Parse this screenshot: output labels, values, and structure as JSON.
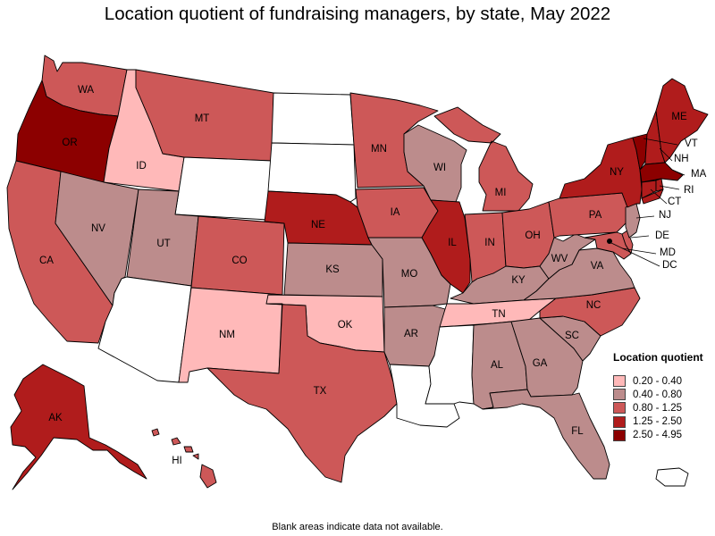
{
  "title": "Location quotient of fundraising managers, by state, May 2022",
  "footnote": "Blank areas indicate data not available.",
  "legend": {
    "title": "Location quotient",
    "bins": [
      {
        "label": "0.20 - 0.40",
        "color": "#ffb9b9"
      },
      {
        "label": "0.40 - 0.80",
        "color": "#bc8c8c"
      },
      {
        "label": "0.80 - 1.25",
        "color": "#cd5858"
      },
      {
        "label": "1.25 - 2.50",
        "color": "#b01c1c"
      },
      {
        "label": "2.50 - 4.95",
        "color": "#8c0000"
      }
    ]
  },
  "no_data_color": "#ffffff",
  "states": {
    "WA": {
      "label": "WA",
      "bin": 2
    },
    "OR": {
      "label": "OR",
      "bin": 4
    },
    "CA": {
      "label": "CA",
      "bin": 2
    },
    "ID": {
      "label": "ID",
      "bin": 0
    },
    "NV": {
      "label": "NV",
      "bin": 1
    },
    "MT": {
      "label": "MT",
      "bin": 2
    },
    "WY": {
      "label": "",
      "bin": null
    },
    "UT": {
      "label": "UT",
      "bin": 1
    },
    "AZ": {
      "label": "",
      "bin": null
    },
    "CO": {
      "label": "CO",
      "bin": 2
    },
    "NM": {
      "label": "NM",
      "bin": 0
    },
    "ND": {
      "label": "",
      "bin": null
    },
    "SD": {
      "label": "",
      "bin": null
    },
    "NE": {
      "label": "NE",
      "bin": 3
    },
    "KS": {
      "label": "KS",
      "bin": 1
    },
    "OK": {
      "label": "OK",
      "bin": 0
    },
    "TX": {
      "label": "TX",
      "bin": 2
    },
    "MN": {
      "label": "MN",
      "bin": 2
    },
    "IA": {
      "label": "IA",
      "bin": 2
    },
    "MO": {
      "label": "MO",
      "bin": 1
    },
    "AR": {
      "label": "AR",
      "bin": 1
    },
    "LA": {
      "label": "",
      "bin": null
    },
    "WI": {
      "label": "WI",
      "bin": 1
    },
    "IL": {
      "label": "IL",
      "bin": 3
    },
    "MI": {
      "label": "MI",
      "bin": 2
    },
    "IN": {
      "label": "IN",
      "bin": 2
    },
    "OH": {
      "label": "OH",
      "bin": 2
    },
    "KY": {
      "label": "KY",
      "bin": 1
    },
    "TN": {
      "label": "TN",
      "bin": 0
    },
    "MS": {
      "label": "",
      "bin": null
    },
    "AL": {
      "label": "AL",
      "bin": 1
    },
    "GA": {
      "label": "GA",
      "bin": 1
    },
    "FL": {
      "label": "FL",
      "bin": 1
    },
    "SC": {
      "label": "SC",
      "bin": 1
    },
    "NC": {
      "label": "NC",
      "bin": 2
    },
    "VA": {
      "label": "VA",
      "bin": 1
    },
    "WV": {
      "label": "WV",
      "bin": 1
    },
    "PA": {
      "label": "PA",
      "bin": 2
    },
    "NY": {
      "label": "NY",
      "bin": 3
    },
    "VT": {
      "label": "VT",
      "bin": 4
    },
    "NH": {
      "label": "NH",
      "bin": 3
    },
    "ME": {
      "label": "ME",
      "bin": 3
    },
    "MA": {
      "label": "MA",
      "bin": 4
    },
    "RI": {
      "label": "RI",
      "bin": 3
    },
    "CT": {
      "label": "CT",
      "bin": 3
    },
    "NJ": {
      "label": "NJ",
      "bin": 1
    },
    "DE": {
      "label": "DE",
      "bin": 2
    },
    "MD": {
      "label": "MD",
      "bin": 2
    },
    "DC": {
      "label": "DC",
      "bin": 4
    },
    "AK": {
      "label": "AK",
      "bin": 3
    },
    "HI": {
      "label": "HI",
      "bin": 2
    },
    "PR": {
      "label": "",
      "bin": null
    }
  }
}
